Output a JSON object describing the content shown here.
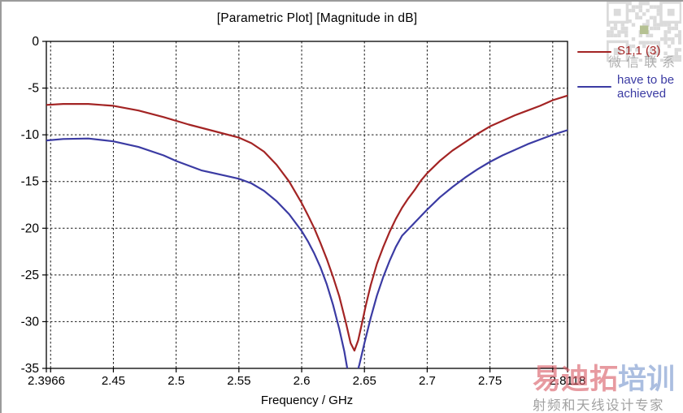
{
  "chart_data": {
    "type": "line",
    "title": "[Parametric Plot] [Magnitude in dB]",
    "xlabel": "Frequency / GHz",
    "ylabel": "",
    "xlim": [
      2.3966,
      2.8118
    ],
    "ylim": [
      -35,
      0
    ],
    "grid": "dashed",
    "legend_position": "right-outside",
    "x_gridlines": [
      2.4,
      2.45,
      2.5,
      2.55,
      2.6,
      2.65,
      2.7,
      2.75,
      2.8
    ],
    "y_gridlines": [
      -5,
      -10,
      -15,
      -20,
      -25,
      -30
    ],
    "xticks": [
      {
        "value": 2.3966,
        "label": "2.3966"
      },
      {
        "value": 2.4,
        "label": ""
      },
      {
        "value": 2.45,
        "label": "2.45"
      },
      {
        "value": 2.5,
        "label": "2.5"
      },
      {
        "value": 2.55,
        "label": "2.55"
      },
      {
        "value": 2.6,
        "label": "2.6"
      },
      {
        "value": 2.65,
        "label": "2.65"
      },
      {
        "value": 2.7,
        "label": "2.7"
      },
      {
        "value": 2.75,
        "label": "2.75"
      },
      {
        "value": 2.8,
        "label": ""
      },
      {
        "value": 2.8118,
        "label": "2.8118"
      }
    ],
    "yticks": [
      {
        "value": 0,
        "label": "0"
      },
      {
        "value": -5,
        "label": "-5"
      },
      {
        "value": -10,
        "label": "-10"
      },
      {
        "value": -15,
        "label": "-15"
      },
      {
        "value": -20,
        "label": "-20"
      },
      {
        "value": -25,
        "label": "-25"
      },
      {
        "value": -30,
        "label": "-30"
      },
      {
        "value": -35,
        "label": "-35"
      }
    ],
    "series": [
      {
        "name": "S1,1 (3)",
        "color": "#a32424",
        "x": [
          2.3966,
          2.41,
          2.43,
          2.45,
          2.47,
          2.49,
          2.51,
          2.53,
          2.55,
          2.56,
          2.57,
          2.58,
          2.59,
          2.6,
          2.605,
          2.61,
          2.615,
          2.62,
          2.625,
          2.63,
          2.635,
          2.639,
          2.642,
          2.645,
          2.648,
          2.651,
          2.655,
          2.66,
          2.665,
          2.67,
          2.675,
          2.68,
          2.685,
          2.69,
          2.695,
          2.7,
          2.71,
          2.72,
          2.73,
          2.74,
          2.75,
          2.76,
          2.77,
          2.78,
          2.79,
          2.8,
          2.8118
        ],
        "y": [
          -6.8,
          -6.7,
          -6.7,
          -6.9,
          -7.4,
          -8.1,
          -8.9,
          -9.6,
          -10.3,
          -10.9,
          -11.8,
          -13.2,
          -15.0,
          -17.3,
          -18.6,
          -20.0,
          -21.6,
          -23.3,
          -25.2,
          -27.3,
          -30.0,
          -32.3,
          -33.1,
          -32.0,
          -30.2,
          -28.3,
          -26.1,
          -23.8,
          -22.0,
          -20.4,
          -19.0,
          -17.8,
          -16.8,
          -15.9,
          -14.9,
          -14.1,
          -12.8,
          -11.7,
          -10.8,
          -9.9,
          -9.1,
          -8.5,
          -7.9,
          -7.4,
          -6.9,
          -6.3,
          -5.8
        ]
      },
      {
        "name": "have to be achieved",
        "color": "#3b3ba3",
        "x": [
          2.3966,
          2.41,
          2.43,
          2.45,
          2.47,
          2.49,
          2.5,
          2.52,
          2.54,
          2.55,
          2.56,
          2.57,
          2.58,
          2.59,
          2.6,
          2.605,
          2.61,
          2.615,
          2.62,
          2.625,
          2.63,
          2.634,
          2.637,
          2.64,
          2.643,
          2.646,
          2.65,
          2.655,
          2.66,
          2.665,
          2.67,
          2.675,
          2.68,
          2.69,
          2.7,
          2.71,
          2.72,
          2.73,
          2.74,
          2.75,
          2.76,
          2.77,
          2.78,
          2.79,
          2.8,
          2.8118
        ],
        "y": [
          -10.6,
          -10.45,
          -10.4,
          -10.7,
          -11.3,
          -12.2,
          -12.8,
          -13.8,
          -14.4,
          -14.7,
          -15.2,
          -16.0,
          -17.1,
          -18.5,
          -20.3,
          -21.4,
          -22.7,
          -24.2,
          -26.0,
          -28.2,
          -30.8,
          -33.2,
          -35.5,
          -37.5,
          -36.0,
          -34.6,
          -32.3,
          -29.6,
          -27.2,
          -25.2,
          -23.5,
          -22.0,
          -20.8,
          -19.4,
          -18.0,
          -16.7,
          -15.6,
          -14.6,
          -13.7,
          -12.9,
          -12.2,
          -11.6,
          -11.0,
          -10.5,
          -10.0,
          -9.5
        ]
      }
    ]
  },
  "header": {
    "title": "[Parametric Plot] [Magnitude in dB]"
  },
  "axis": {
    "x_title": "Frequency / GHz"
  },
  "legend": {
    "items": [
      {
        "label": "S1,1 (3)",
        "color": "#a32424"
      },
      {
        "label": "have to be achieved",
        "color": "#3b3ba3"
      }
    ]
  },
  "watermark": {
    "qr_caption": "微信联系",
    "brand_main_red": "易迪拓",
    "brand_main_blue": "培训",
    "brand_sub": "射频和天线设计专家",
    "qr_color": "#bfbfbf",
    "qr_dot_color": "#7a8f3a"
  },
  "style": {
    "axis_color": "#000000",
    "grid_color": "#1a1a1a",
    "background": "#ffffff"
  }
}
